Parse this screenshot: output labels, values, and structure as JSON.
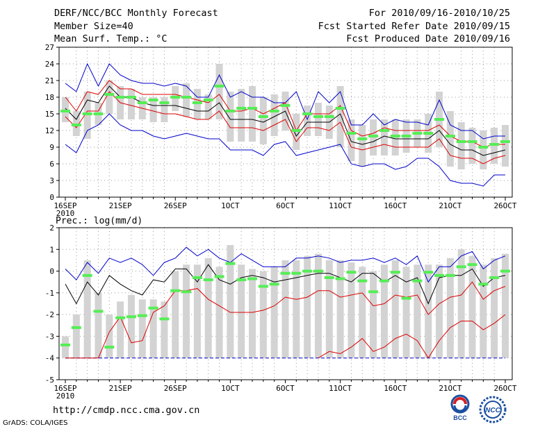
{
  "header": {
    "title": "DERF/NCC/BCC Monthly Forecast",
    "member_size": "Member Size=40",
    "variable": "Mean Surf. Temp.: °C",
    "period": "For 2010/09/16-2010/10/25",
    "start_date": "Fcst Started Refer Date 2010/09/15",
    "produced_date": "Fcst Produced Date 2010/09/16"
  },
  "footer": {
    "url": "http://cmdp.ncc.cma.gov.cn",
    "grads": "GrADS: COLA/IGES",
    "logo_left_text": "BCC",
    "logo_right_text": "NCC"
  },
  "colors": {
    "box": "#d3d3d3",
    "median": "#55ee55",
    "envelope": "#0000cc",
    "ensemble_sd": "#dd0000",
    "ensemble_mean": "#000000",
    "grid": "#999999"
  },
  "chart_data": [
    {
      "type": "line",
      "title": "Mean Surf. Temp.: °C",
      "x_tick_labels": [
        "16SEP\n2010",
        "21SEP",
        "26SEP",
        "1OCT",
        "6OCT",
        "11OCT",
        "16OCT",
        "21OCT",
        "26OCT"
      ],
      "x_tick_days": [
        0,
        5,
        10,
        15,
        20,
        25,
        30,
        35,
        40
      ],
      "ylim": [
        0,
        27
      ],
      "y_ticks": [
        0,
        3,
        6,
        9,
        12,
        15,
        18,
        21,
        24,
        27
      ],
      "series": [
        {
          "name": "max",
          "color": "#0000cc",
          "values": [
            20.5,
            19,
            24,
            20,
            24,
            22,
            21,
            20.5,
            20.5,
            20,
            20.5,
            20,
            18,
            18,
            22,
            18,
            19,
            18,
            18,
            17,
            17,
            19,
            14,
            19,
            17,
            19,
            13,
            13,
            15,
            13,
            14,
            13.5,
            13.5,
            13,
            17.5,
            13,
            12,
            12,
            10.5,
            11,
            11
          ]
        },
        {
          "name": "mean_plus_sd",
          "color": "#dd0000",
          "values": [
            18,
            15.5,
            19,
            18.5,
            21,
            19.5,
            19.5,
            18.5,
            18.5,
            18.5,
            18.5,
            18,
            17.5,
            17,
            18.5,
            15.5,
            15.5,
            16,
            15,
            16,
            17,
            12,
            15,
            15,
            15,
            16.5,
            12,
            11,
            11.5,
            12.5,
            12,
            12,
            12,
            12,
            13,
            11,
            10,
            10,
            9,
            9.5,
            9.5
          ]
        },
        {
          "name": "mean",
          "color": "#000000",
          "values": [
            16,
            14,
            17.5,
            17,
            20,
            18,
            18,
            17,
            16.5,
            16.5,
            16.5,
            16,
            15.5,
            15.5,
            17,
            14,
            14,
            14,
            13.5,
            14.5,
            15.5,
            11,
            13.5,
            13.5,
            13.5,
            15,
            10,
            9.5,
            10,
            11,
            10.5,
            10.5,
            10.5,
            10.5,
            12,
            9.5,
            8.5,
            8.5,
            7.5,
            8,
            8.5
          ]
        },
        {
          "name": "mean_minus_sd",
          "color": "#dd0000",
          "values": [
            14.5,
            12.5,
            15.5,
            15.5,
            19,
            17,
            16.5,
            16,
            15.5,
            15,
            15,
            14.5,
            14,
            14,
            15.5,
            12.5,
            12.5,
            12.5,
            12,
            13,
            14,
            10,
            12.5,
            12.5,
            12,
            13.5,
            9,
            8.5,
            9,
            9.5,
            9,
            9,
            9,
            9,
            10.5,
            7.5,
            7,
            7,
            6,
            7,
            7.5
          ]
        },
        {
          "name": "min",
          "color": "#0000cc",
          "values": [
            9.5,
            8,
            12,
            13,
            15,
            13,
            12,
            12,
            11,
            10.5,
            11,
            11.5,
            11,
            10.5,
            10.5,
            8.5,
            8.5,
            8.5,
            7.5,
            9.5,
            10,
            7.5,
            8,
            8.5,
            9,
            9.5,
            6,
            5.5,
            6,
            6,
            5,
            5.5,
            7,
            7,
            5.5,
            3,
            2.5,
            2.5,
            2,
            4,
            4
          ]
        },
        {
          "name": "median",
          "color": "#55ee55",
          "values": [
            15.5,
            13,
            15,
            15,
            18.5,
            18,
            18,
            17,
            17.5,
            17,
            18,
            18,
            17,
            17.5,
            20,
            15.5,
            16,
            16,
            14.5,
            15.5,
            16.5,
            12,
            15,
            14.5,
            14.5,
            16,
            11.5,
            10.5,
            11,
            12,
            11,
            11,
            11.5,
            11.5,
            14,
            11,
            10,
            10,
            9,
            9.5,
            10
          ]
        },
        {
          "name": "box_upper",
          "color": "#d3d3d3",
          "values": [
            18,
            15.5,
            19,
            17,
            21,
            20,
            19.5,
            18,
            18,
            18,
            20,
            20.5,
            19.5,
            18.5,
            24,
            19,
            19.5,
            20,
            18,
            18.5,
            19,
            15,
            16.5,
            17,
            16.5,
            20,
            14,
            13,
            14,
            14,
            14,
            14,
            14,
            15,
            19,
            15.5,
            13.5,
            12.5,
            12,
            12.5,
            13
          ]
        },
        {
          "name": "box_lower",
          "color": "#d3d3d3",
          "values": [
            13.5,
            11,
            10.5,
            13,
            15,
            14,
            14,
            14,
            13.5,
            13.5,
            15.5,
            14.5,
            14,
            14,
            14,
            10,
            10,
            10,
            9.5,
            11,
            12,
            8.5,
            11,
            11,
            10.5,
            9,
            6.5,
            5.5,
            7.5,
            7.5,
            7.5,
            8,
            9,
            8,
            9,
            5.5,
            5,
            6,
            5,
            6,
            5.5
          ]
        }
      ]
    },
    {
      "type": "line",
      "title": "Prec.: log(mm/d)",
      "x_tick_labels": [
        "16SEP\n2010",
        "21SEP",
        "26SEP",
        "1OCT",
        "6OCT",
        "11OCT",
        "16OCT",
        "21OCT",
        "26OCT"
      ],
      "x_tick_days": [
        0,
        5,
        10,
        15,
        20,
        25,
        30,
        35,
        40
      ],
      "ylim": [
        -5,
        2
      ],
      "y_ticks": [
        -5,
        -4,
        -3,
        -2,
        -1,
        0,
        1,
        2
      ],
      "series": [
        {
          "name": "max",
          "color": "#0000cc",
          "values": [
            0.1,
            -0.4,
            0.4,
            -0.1,
            0.6,
            0.4,
            0.6,
            0.3,
            -0.2,
            0.4,
            0.6,
            1.1,
            0.7,
            1,
            0.6,
            0.4,
            0.8,
            0.5,
            0.2,
            0.2,
            0.2,
            0.6,
            0.6,
            0.7,
            0.6,
            0.4,
            0.5,
            0.5,
            0.6,
            0.4,
            0.6,
            0.3,
            0.7,
            -0.5,
            0.2,
            0.2,
            0.7,
            0.9,
            0.1,
            0.5,
            0.7
          ]
        },
        {
          "name": "mean",
          "color": "#000000",
          "values": [
            -0.6,
            -1.5,
            -0.5,
            -1.1,
            -0.2,
            -0.6,
            -0.9,
            -1.1,
            -0.4,
            -0.5,
            0.1,
            0.1,
            -0.5,
            0.3,
            -0.4,
            -0.6,
            -0.3,
            -0.2,
            -0.3,
            -0.5,
            -0.4,
            -0.3,
            -0.2,
            -0.1,
            -0.1,
            -0.3,
            -0.5,
            -0.1,
            -0.1,
            -0.5,
            -0.2,
            -0.5,
            -0.3,
            -1.5,
            -0.3,
            -0.2,
            -0.2,
            0.1,
            -0.7,
            -0.3,
            -0.2
          ]
        },
        {
          "name": "mean_minus_sd",
          "color": "#dd0000",
          "values": [
            -4,
            -4,
            -4,
            -4,
            -2.8,
            -2.1,
            -3.3,
            -3.2,
            -1.9,
            -1.6,
            -0.9,
            -0.9,
            -0.8,
            -1.3,
            -1.6,
            -1.9,
            -1.9,
            -1.9,
            -1.8,
            -1.6,
            -1.2,
            -1.3,
            -1.2,
            -0.9,
            -0.9,
            -1.2,
            -1.1,
            -1,
            -1.6,
            -1.5,
            -1.1,
            -1.2,
            -1.1,
            -2,
            -1.5,
            -1.2,
            -1.1,
            -0.5,
            -1.3,
            -0.9,
            -0.7
          ]
        },
        {
          "name": "mean_minus_2sd",
          "color": "#dd0000",
          "values": [
            null,
            null,
            null,
            null,
            null,
            null,
            null,
            null,
            null,
            null,
            null,
            null,
            null,
            null,
            null,
            null,
            null,
            null,
            null,
            null,
            null,
            null,
            null,
            -4,
            -3.7,
            -3.8,
            -3.5,
            -3.1,
            -3.7,
            -3.5,
            -3.1,
            -2.9,
            -3.2,
            -4,
            -3.2,
            -2.6,
            -2.3,
            -2.3,
            -2.7,
            -2.4,
            -2
          ]
        },
        {
          "name": "floor",
          "color": "#0000cc",
          "values": [
            -4,
            -4,
            -4,
            -4,
            -4,
            -4,
            -4,
            -4,
            -4,
            -4,
            -4,
            -4,
            -4,
            -4,
            -4,
            -4,
            -4,
            -4,
            -4,
            -4,
            -4,
            -4,
            -4,
            -4,
            -4,
            -4,
            -4,
            -4,
            -4,
            -4,
            -4,
            -4,
            -4,
            -4,
            -4,
            -4,
            -4,
            -4,
            -4,
            -4,
            -4
          ]
        },
        {
          "name": "median",
          "color": "#55ee55",
          "values": [
            -3.4,
            -2.6,
            -0.2,
            -1.85,
            -3.5,
            -2.15,
            -2.1,
            -2.05,
            -1.7,
            -2.2,
            -0.9,
            -0.95,
            -0.3,
            -0.4,
            -0.25,
            0.35,
            -0.4,
            -0.35,
            -0.7,
            -0.6,
            -0.1,
            -0.1,
            0,
            0,
            -0.3,
            -0.35,
            -0.05,
            -0.45,
            -0.95,
            -0.45,
            -0.05,
            -1.25,
            -0.45,
            -0.05,
            -0.2,
            -0.2,
            0.2,
            0.3,
            -0.6,
            -0.3,
            0
          ]
        },
        {
          "name": "box_upper",
          "color": "#d3d3d3",
          "values": [
            -3,
            -2,
            0.5,
            -1,
            -2,
            -1.4,
            -1.1,
            -1.3,
            -1.3,
            -1.4,
            0,
            0.3,
            0.3,
            0.6,
            0.2,
            1.2,
            0.3,
            0.1,
            0,
            0.2,
            0.5,
            0.5,
            0.7,
            0.8,
            0.5,
            0.5,
            0.4,
            0.2,
            0,
            0.3,
            0.5,
            0.2,
            0.3,
            0.3,
            0.3,
            0.6,
            1,
            0.7,
            0.3,
            0.6,
            0.8
          ]
        },
        {
          "name": "box_lower",
          "color": "#d3d3d3",
          "values": [
            -4,
            -4,
            -4,
            -4,
            -4,
            -4,
            -4,
            -4,
            -4,
            -4,
            -4,
            -4,
            -4,
            -4,
            -4,
            -4,
            -4,
            -4,
            -4,
            -4,
            -4,
            -4,
            -4,
            -4,
            -4,
            -4,
            -4,
            -4,
            -4,
            -4,
            -4,
            -4,
            -4,
            -4,
            -4,
            -4,
            -4,
            -4,
            -4,
            -4,
            -4
          ]
        }
      ]
    }
  ]
}
